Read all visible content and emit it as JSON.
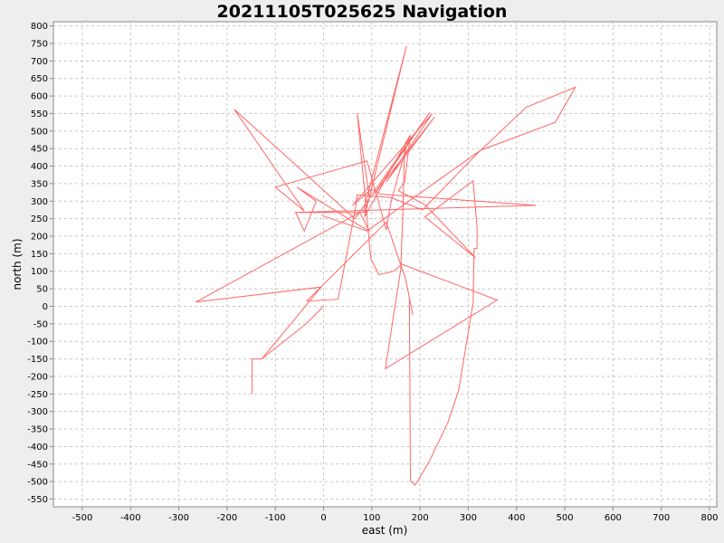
{
  "chart_data": {
    "type": "line",
    "title": "20211105T025625 Navigation",
    "xlabel": "east (m)",
    "ylabel": "north (m)",
    "xlim": [
      -560,
      815
    ],
    "ylim": [
      -572,
      812
    ],
    "x_ticks": [
      -500,
      -400,
      -300,
      -200,
      -100,
      0,
      100,
      200,
      300,
      400,
      500,
      600,
      700,
      800
    ],
    "y_ticks": [
      -550,
      -500,
      -450,
      -400,
      -350,
      -300,
      -250,
      -200,
      -150,
      -100,
      -50,
      0,
      50,
      100,
      150,
      200,
      250,
      300,
      350,
      400,
      450,
      500,
      550,
      600,
      650,
      700,
      750,
      800
    ],
    "grid": true,
    "colors": {
      "line": "#ff6666",
      "grid": "#c8c8c8",
      "plot_bg": "#ffffff",
      "page_bg": "#eeeeee",
      "axis": "#888888"
    },
    "series": [
      {
        "points": [
          [
            0,
            0
          ],
          [
            -38,
            -52
          ],
          [
            -108,
            -128
          ],
          [
            -128,
            -150
          ],
          [
            -148,
            -150
          ],
          [
            -148,
            -250
          ],
          [
            -148,
            -150
          ],
          [
            -128,
            -150
          ],
          [
            -5,
            55
          ],
          [
            -265,
            12
          ],
          [
            75,
            268
          ],
          [
            95,
            215
          ],
          [
            75,
            230
          ],
          [
            -55,
            340
          ],
          [
            -15,
            300
          ],
          [
            -40,
            215
          ],
          [
            -58,
            268
          ],
          [
            82,
            268
          ],
          [
            172,
            743
          ],
          [
            85,
            255
          ],
          [
            178,
            485
          ],
          [
            140,
            300
          ],
          [
            130,
            218
          ],
          [
            90,
            415
          ],
          [
            -100,
            340
          ],
          [
            -40,
            272
          ],
          [
            -185,
            562
          ],
          [
            65,
            250
          ],
          [
            220,
            553
          ],
          [
            105,
            320
          ],
          [
            230,
            540
          ],
          [
            130,
            355
          ],
          [
            225,
            550
          ],
          [
            60,
            288
          ],
          [
            100,
            335
          ],
          [
            118,
            320
          ],
          [
            440,
            288
          ],
          [
            -60,
            268
          ],
          [
            85,
            268
          ],
          [
            95,
            310
          ],
          [
            70,
            550
          ],
          [
            98,
            135
          ],
          [
            115,
            90
          ],
          [
            145,
            100
          ],
          [
            162,
            120
          ],
          [
            360,
            18
          ],
          [
            128,
            -178
          ],
          [
            160,
            105
          ],
          [
            165,
            290
          ],
          [
            168,
            462
          ],
          [
            180,
            488
          ],
          [
            168,
            355
          ],
          [
            155,
            330
          ],
          [
            210,
            290
          ],
          [
            315,
            138
          ],
          [
            210,
            255
          ],
          [
            310,
            358
          ],
          [
            318,
            225
          ],
          [
            318,
            165
          ],
          [
            312,
            165
          ],
          [
            310,
            10
          ],
          [
            280,
            -240
          ],
          [
            258,
            -330
          ],
          [
            220,
            -440
          ],
          [
            190,
            -510
          ],
          [
            180,
            -498
          ],
          [
            178,
            25
          ],
          [
            185,
            -25
          ],
          [
            170,
            78
          ],
          [
            130,
            240
          ],
          [
            -35,
            15
          ],
          [
            30,
            20
          ],
          [
            65,
            270
          ],
          [
            70,
            318
          ],
          [
            140,
            310
          ],
          [
            205,
            275
          ],
          [
            325,
            445
          ],
          [
            480,
            525
          ],
          [
            522,
            625
          ],
          [
            420,
            568
          ],
          [
            328,
            448
          ],
          [
            90,
            215
          ],
          [
            -5,
            260
          ]
        ]
      }
    ]
  }
}
